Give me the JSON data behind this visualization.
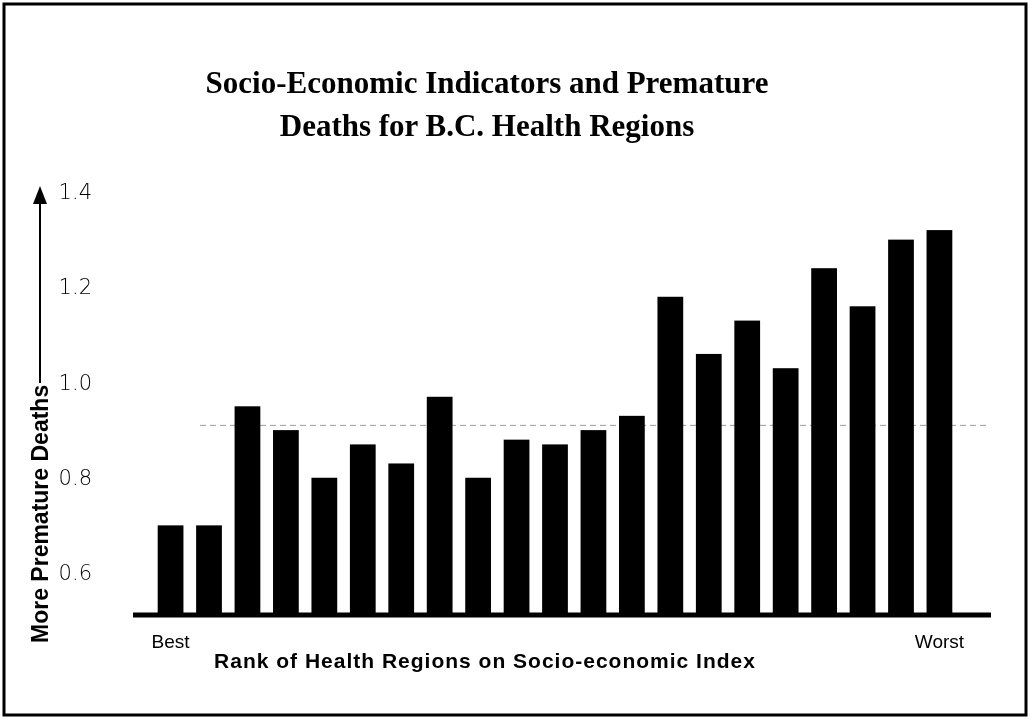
{
  "chart_data": {
    "type": "bar",
    "title": "Socio-Economic Indicators and Premature\nDeaths for B.C. Health Regions",
    "xlabel": "Rank of Health Regions on Socio-economic Index",
    "ylabel": "More Premature Deaths",
    "categories": [
      "Best",
      null,
      null,
      null,
      null,
      null,
      null,
      null,
      null,
      null,
      null,
      null,
      null,
      null,
      null,
      null,
      null,
      null,
      null,
      null,
      "Worst"
    ],
    "values": [
      0.7,
      0.7,
      0.95,
      0.9,
      0.8,
      0.87,
      0.83,
      0.97,
      0.8,
      0.88,
      0.87,
      0.9,
      0.93,
      1.18,
      1.06,
      1.13,
      1.03,
      1.24,
      1.16,
      1.3,
      1.32
    ],
    "color": "#000000",
    "ylim": [
      0.516,
      1.4
    ],
    "yticks": [
      {
        "value": 0.6,
        "label": "0.6"
      },
      {
        "value": 0.8,
        "label": "0.8"
      },
      {
        "value": 1.0,
        "label": "1.0"
      },
      {
        "value": 1.2,
        "label": "1.2"
      },
      {
        "value": 1.4,
        "label": "1.4"
      }
    ],
    "ref_lines": [
      {
        "axis": "y",
        "value": 0.91,
        "color": "#999999",
        "line_style": "dashed"
      }
    ]
  }
}
